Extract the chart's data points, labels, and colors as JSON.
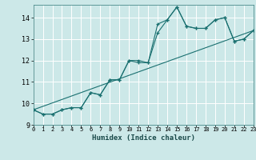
{
  "xlabel": "Humidex (Indice chaleur)",
  "xlim": [
    0,
    23
  ],
  "ylim": [
    9,
    14.6
  ],
  "yticks": [
    9,
    10,
    11,
    12,
    13,
    14
  ],
  "bg_color": "#cce8e8",
  "grid_color": "#ffffff",
  "line_color": "#1a7070",
  "hours": [
    0,
    1,
    2,
    3,
    4,
    5,
    6,
    7,
    8,
    9,
    10,
    11,
    12,
    13,
    14,
    15,
    16,
    17,
    18,
    19,
    20,
    21,
    22,
    23
  ],
  "series1": [
    9.7,
    9.5,
    9.5,
    9.7,
    9.8,
    9.8,
    10.5,
    10.4,
    11.1,
    11.1,
    12.0,
    11.9,
    11.9,
    13.7,
    13.9,
    14.5,
    13.6,
    13.5,
    13.5,
    13.9,
    14.0,
    12.9,
    13.0,
    13.4
  ],
  "series2": [
    9.7,
    9.5,
    9.5,
    9.7,
    9.8,
    9.8,
    10.5,
    10.4,
    11.1,
    11.1,
    12.0,
    12.0,
    11.9,
    13.3,
    13.9,
    14.5,
    13.6,
    13.5,
    13.5,
    13.9,
    14.0,
    12.9,
    13.0,
    13.4
  ],
  "trend_x": [
    0,
    23
  ],
  "trend_y": [
    9.7,
    13.4
  ]
}
